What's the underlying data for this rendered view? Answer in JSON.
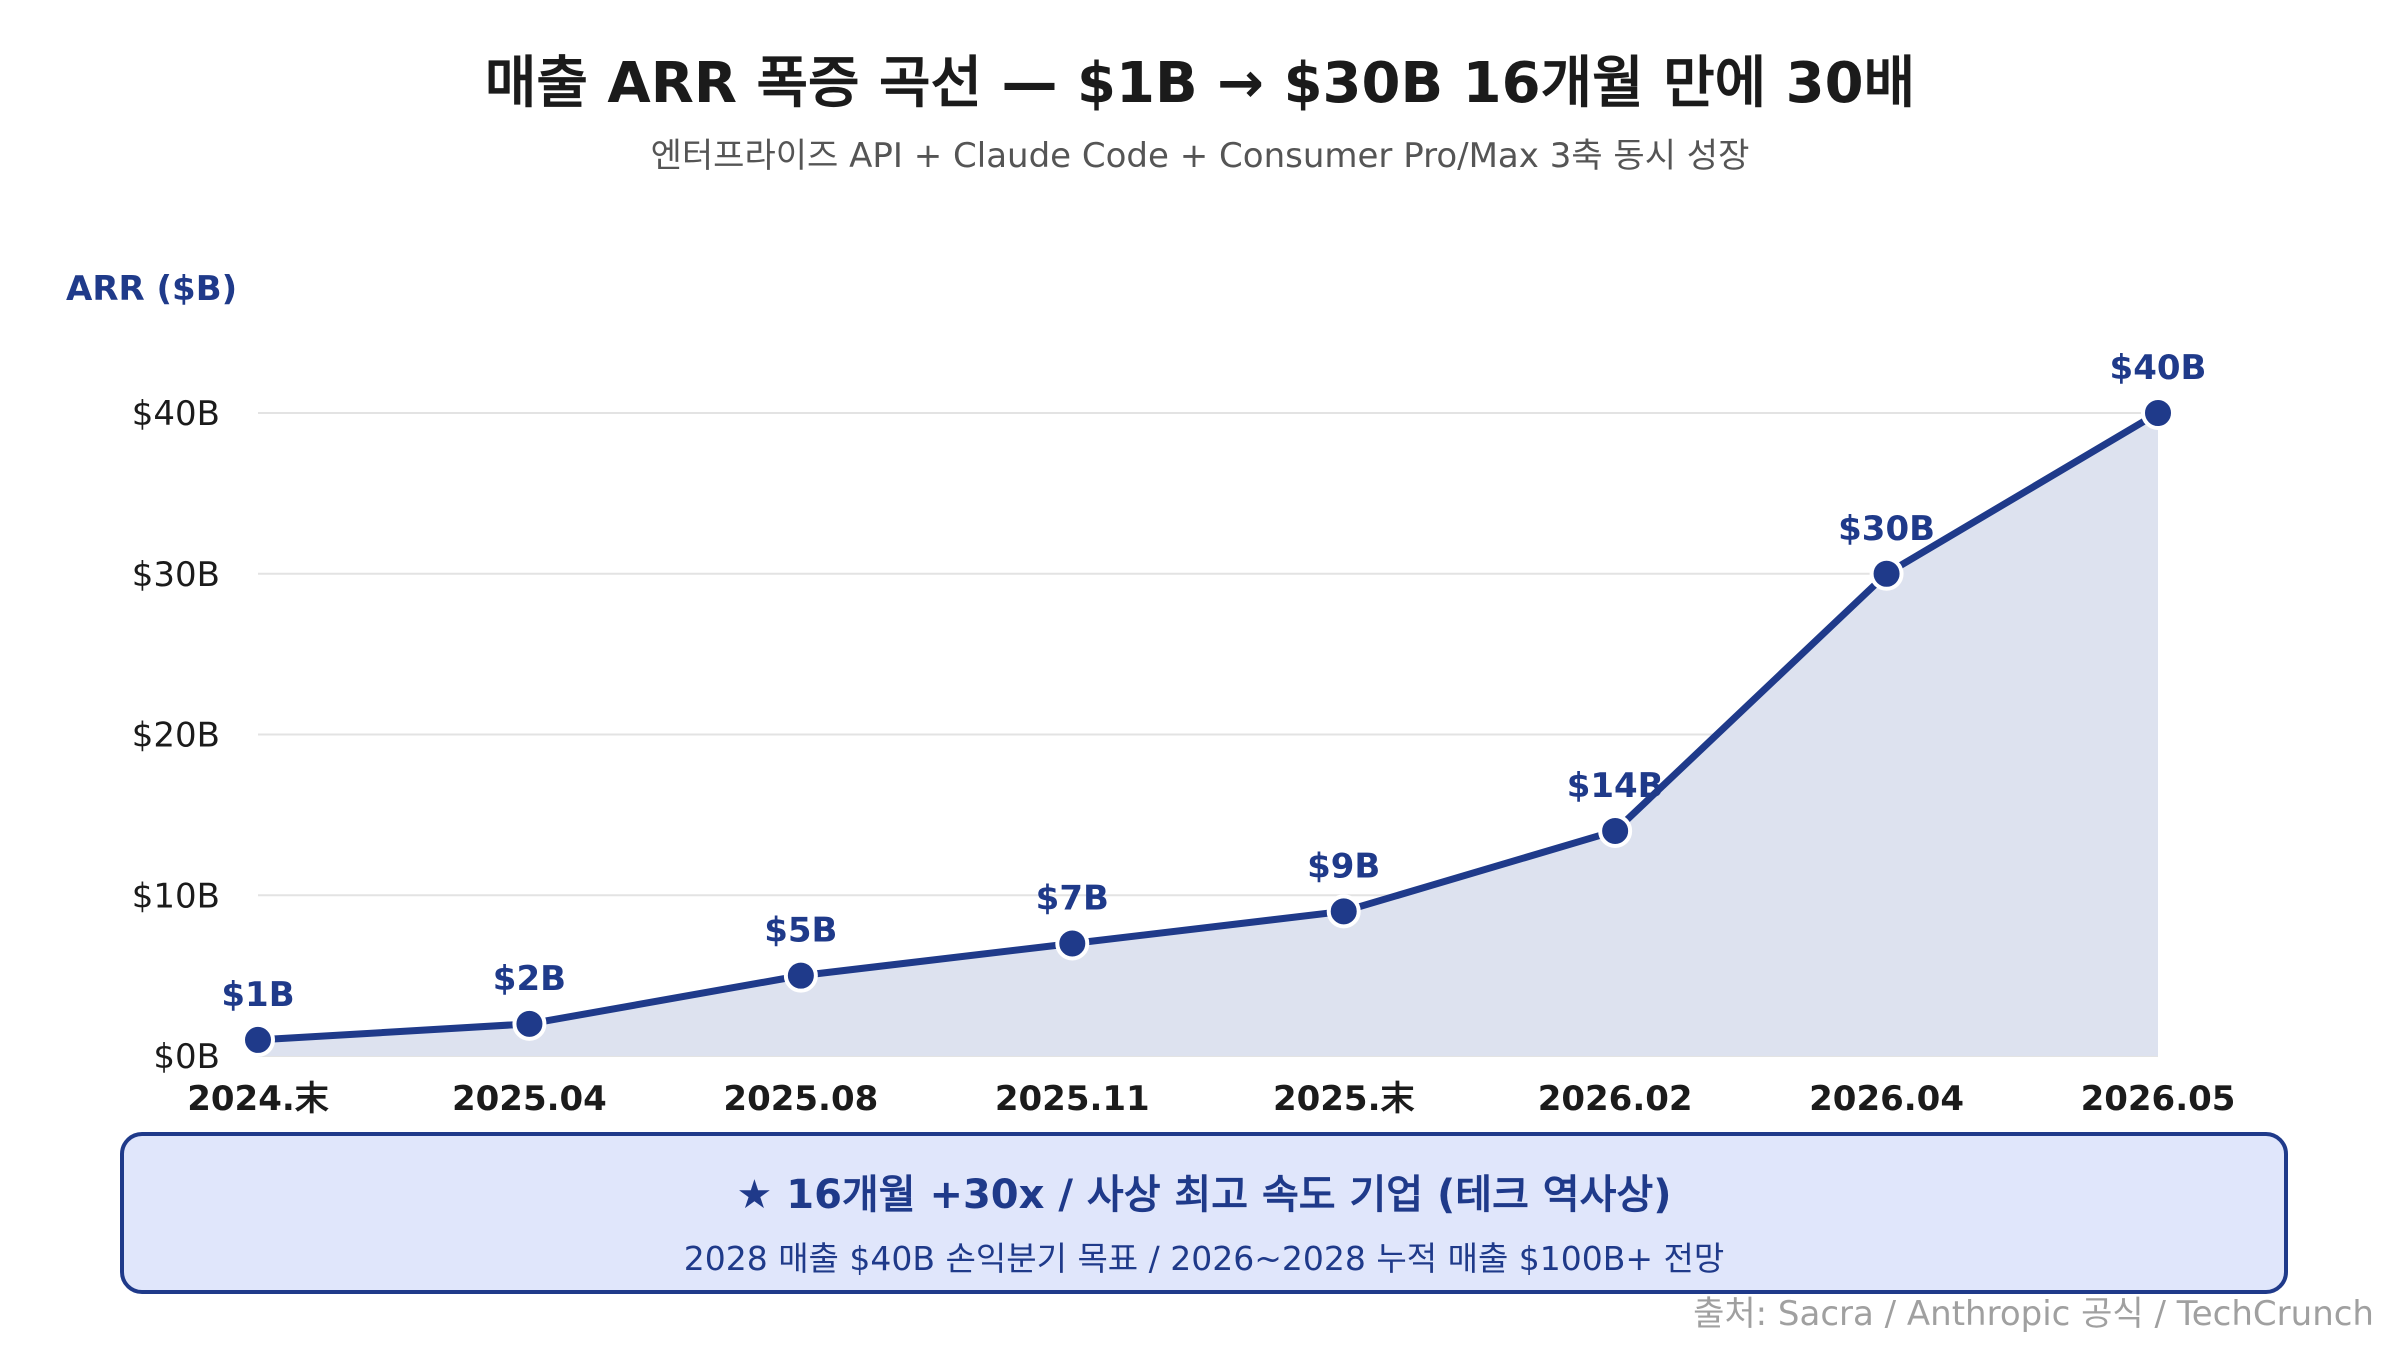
{
  "title": "매출 ARR 폭증 곡선 — $1B → $30B 16개월 만에 30배",
  "subtitle": "엔터프라이즈 API + Claude Code + Consumer Pro/Max 3축 동시 성장",
  "callout": {
    "main": "★ 16개월 +30x / 사상 최고 속도 기업 (테크 역사상)",
    "sub": "2028 매출 $40B 손익분기 목표 / 2026~2028 누적 매출 $100B+ 전망"
  },
  "source": "출처: Sacra / Anthropic 공식 / TechCrunch",
  "colors": {
    "line": "#1f3a8a",
    "area": "#dde2ef",
    "grid": "#e3e3e3",
    "text": "#1b1b1b",
    "accent": "#1f3a8a"
  },
  "chart_data": {
    "type": "area",
    "ylabel": "ARR ($B)",
    "xlabel": "",
    "categories": [
      "2024.末",
      "2025.04",
      "2025.08",
      "2025.11",
      "2025.末",
      "2026.02",
      "2026.04",
      "2026.05"
    ],
    "values": [
      1,
      2,
      5,
      7,
      9,
      14,
      30,
      40
    ],
    "data_labels": [
      "$1B",
      "$2B",
      "$5B",
      "$7B",
      "$9B",
      "$14B",
      "$30B",
      "$40B"
    ],
    "ylim": [
      0,
      40
    ],
    "yticks": [
      0,
      10,
      20,
      30,
      40
    ],
    "ytick_labels": [
      "$0B",
      "$10B",
      "$20B",
      "$30B",
      "$40B"
    ],
    "grid": true,
    "legend": "none"
  }
}
